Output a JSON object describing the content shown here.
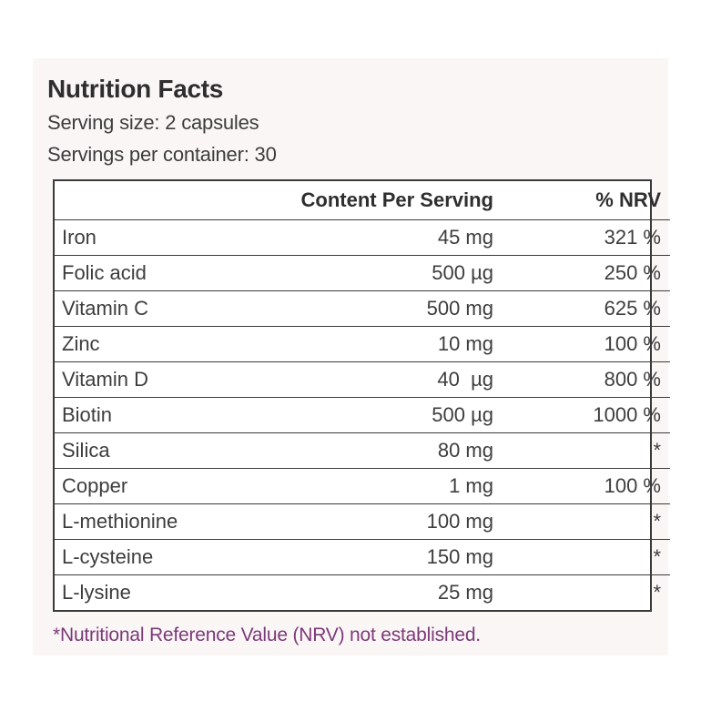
{
  "label": {
    "title": "Nutrition Facts",
    "serving_size": "Serving size: 2 capsules",
    "servings_per_container": "Servings per container: 30",
    "table": {
      "headers": [
        "",
        "Content Per Serving",
        "% NRV"
      ],
      "rows": [
        {
          "nutrient": "Iron",
          "amount": "45 mg",
          "nrv": "321 %"
        },
        {
          "nutrient": "Folic acid",
          "amount": "500 µg",
          "nrv": "250 %"
        },
        {
          "nutrient": "Vitamin C",
          "amount": "500 mg",
          "nrv": "625 %"
        },
        {
          "nutrient": "Zinc",
          "amount": "10 mg",
          "nrv": "100 %"
        },
        {
          "nutrient": "Vitamin D",
          "amount": "40  µg",
          "nrv": "800 %"
        },
        {
          "nutrient": "Biotin",
          "amount": "500 µg",
          "nrv": "1000 %"
        },
        {
          "nutrient": "Silica",
          "amount": "80 mg",
          "nrv": "*"
        },
        {
          "nutrient": "Copper",
          "amount": "1 mg",
          "nrv": "100 %"
        },
        {
          "nutrient": "L-methionine",
          "amount": "100 mg",
          "nrv": "*"
        },
        {
          "nutrient": "L-cysteine",
          "amount": "150 mg",
          "nrv": "*"
        },
        {
          "nutrient": "L-lysine",
          "amount": "25 mg",
          "nrv": "*"
        }
      ]
    },
    "footnote": "*Nutritional Reference Value (NRV) not established."
  },
  "colors": {
    "card_background": "#fbf6f6",
    "text": "#3a3a3a",
    "footnote": "#7b3a78"
  }
}
